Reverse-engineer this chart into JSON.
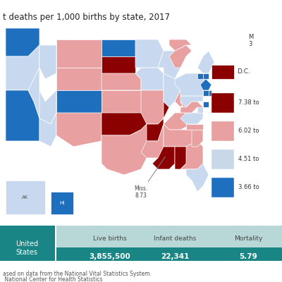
{
  "title": "t deaths per 1,000 births by state, 2017",
  "legend_items": [
    {
      "label": "7.38 to",
      "color": "#8B0000"
    },
    {
      "label": "6.02 to",
      "color": "#E8A0A0"
    },
    {
      "label": "4.51 to",
      "color": "#C8D8E8"
    },
    {
      "label": "3.66 to",
      "color": "#1E6FBE"
    }
  ],
  "table_header_bg": "#B8D8D8",
  "table_row_bg": "#1A8585",
  "table_header_text": "#555555",
  "table_value_color": "#FFFFFF",
  "table_columns": [
    "Live births",
    "Infant deaths",
    "Mortality"
  ],
  "table_row_label": "United\nStates",
  "table_values": [
    "3,855,500",
    "22,341",
    "5.79"
  ],
  "source_line1": "ased on data from the National Vital Statistics System.",
  "source_line2": " National Center for Health Statistics",
  "annotation_dc": "D.C.",
  "annotation_miss": "Miss.\n8.73",
  "annotation_ma": "M\n3",
  "background_color": "#FFFFFF",
  "dark_red": "#8B0000",
  "light_red": "#E8A0A0",
  "light_blue": "#C8D8EE",
  "dark_blue": "#1E6FBE",
  "map_bg": "#F0F4F8"
}
